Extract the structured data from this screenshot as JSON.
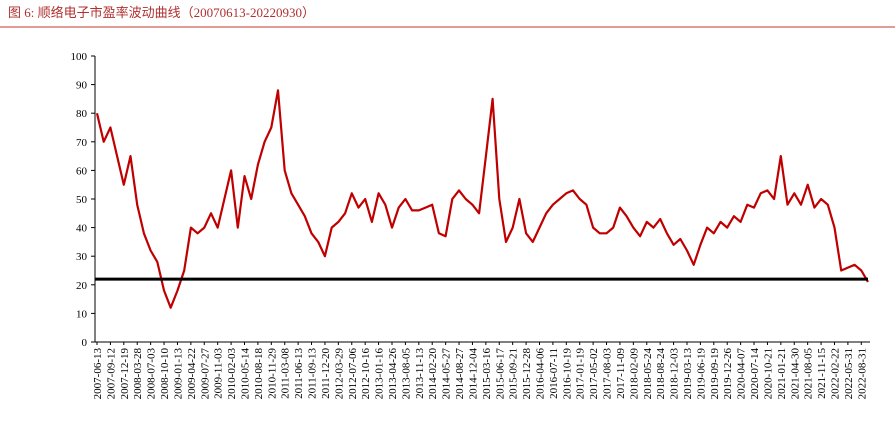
{
  "chart_data": {
    "type": "line",
    "title": "图 6:  顺络电子市盈率波动曲线（20070613-20220930）",
    "categories": [
      "2007-06-13",
      null,
      "2007-09-12",
      null,
      "2007-12-19",
      null,
      "2008-03-28",
      null,
      "2008-07-03",
      null,
      "2008-10-10",
      null,
      "2009-01-13",
      null,
      "2009-04-22",
      null,
      "2009-07-27",
      null,
      "2009-11-03",
      null,
      "2010-02-03",
      null,
      "2010-05-14",
      null,
      "2010-08-18",
      null,
      "2010-11-29",
      null,
      "2011-03-08",
      null,
      "2011-06-13",
      null,
      "2011-09-13",
      null,
      "2011-12-20",
      null,
      "2012-03-29",
      null,
      "2012-07-06",
      null,
      "2012-10-16",
      null,
      "2013-01-16",
      null,
      "2013-04-26",
      null,
      "2013-08-05",
      null,
      "2013-11-13",
      null,
      "2014-02-20",
      null,
      "2014-05-27",
      null,
      "2014-08-27",
      null,
      "2014-12-04",
      null,
      "2015-03-16",
      null,
      "2015-06-17",
      null,
      "2015-09-21",
      null,
      "2015-12-28",
      null,
      "2016-04-06",
      null,
      "2016-07-11",
      null,
      "2016-10-19",
      null,
      "2017-01-19",
      null,
      "2017-05-02",
      null,
      "2017-08-03",
      null,
      "2017-11-09",
      null,
      "2018-02-09",
      null,
      "2018-05-24",
      null,
      "2018-08-24",
      null,
      "2018-12-03",
      null,
      "2019-03-13",
      null,
      "2019-06-19",
      null,
      "2019-09-19",
      null,
      "2019-12-26",
      null,
      "2020-04-07",
      null,
      "2020-07-14",
      null,
      "2020-10-21",
      null,
      "2021-01-21",
      null,
      "2021-04-30",
      null,
      "2021-08-05",
      null,
      "2021-11-15",
      null,
      "2022-02-22",
      null,
      "2022-05-31",
      null,
      "2022-08-31",
      null
    ],
    "series": [
      {
        "color": "#c00000",
        "values": [
          80,
          70,
          75,
          65,
          55,
          65,
          48,
          38,
          32,
          28,
          18,
          12,
          18,
          25,
          40,
          38,
          40,
          45,
          40,
          50,
          60,
          40,
          58,
          50,
          62,
          70,
          75,
          88,
          60,
          52,
          48,
          44,
          38,
          35,
          30,
          40,
          42,
          45,
          52,
          47,
          50,
          42,
          52,
          48,
          40,
          47,
          50,
          46,
          46,
          47,
          48,
          38,
          37,
          50,
          53,
          50,
          48,
          45,
          65,
          85,
          50,
          35,
          40,
          50,
          38,
          35,
          40,
          45,
          48,
          50,
          52,
          53,
          50,
          48,
          40,
          38,
          38,
          40,
          47,
          44,
          40,
          37,
          42,
          40,
          43,
          38,
          34,
          36,
          32,
          27,
          34,
          40,
          38,
          42,
          40,
          44,
          42,
          48,
          47,
          52,
          53,
          50,
          65,
          48,
          52,
          48,
          55,
          47,
          50,
          48,
          40,
          25,
          26,
          27,
          25,
          21
        ]
      }
    ],
    "hline": {
      "value": 22,
      "color": "#000000"
    },
    "ylim": [
      0,
      100
    ],
    "yticks": [
      0,
      10,
      20,
      30,
      40,
      50,
      60,
      70,
      80,
      90,
      100
    ]
  }
}
